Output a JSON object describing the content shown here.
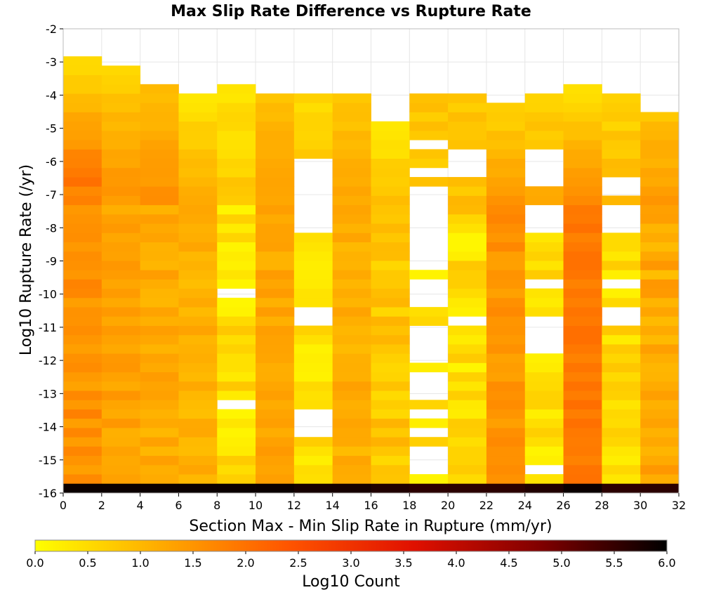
{
  "chart_data": {
    "type": "heatmap",
    "title": "Max Slip Rate Difference vs Rupture Rate",
    "xlabel": "Section Max - Min Slip Rate in Rupture (mm/yr)",
    "ylabel": "Log10 Rupture Rate (/yr)",
    "xlim": [
      0,
      32
    ],
    "ylim": [
      -16,
      -2
    ],
    "x_ticks": [
      "0",
      "2",
      "4",
      "6",
      "8",
      "10",
      "12",
      "14",
      "16",
      "18",
      "20",
      "22",
      "24",
      "26",
      "28",
      "30",
      "32"
    ],
    "y_ticks": [
      "-2",
      "-3",
      "-4",
      "-5",
      "-6",
      "-7",
      "-8",
      "-9",
      "-10",
      "-11",
      "-12",
      "-13",
      "-14",
      "-15",
      "-16"
    ],
    "x_bin_width": 2,
    "y_bin_width": 0.28,
    "y_bin_start": -15.85,
    "colorbar": {
      "label": "Log10 Count",
      "range": [
        0.0,
        6.0
      ],
      "ticks": [
        "0.0",
        "0.5",
        "1.0",
        "1.5",
        "2.0",
        "2.5",
        "3.0",
        "3.5",
        "4.0",
        "4.5",
        "5.0",
        "5.5",
        "6.0"
      ],
      "colors": [
        "#ffff00",
        "#ffaa00",
        "#ff5500",
        "#e01000",
        "#800000",
        "#000000"
      ]
    },
    "columns": [
      {
        "x": 1,
        "top": -2.7,
        "bottom_value": 5.9,
        "holes": [],
        "base": 1.55,
        "amp": 0.25,
        "top_trend": [
          0.5,
          2.1
        ]
      },
      {
        "x": 3,
        "top": -3.0,
        "bottom_value": 5.9,
        "holes": [],
        "base": 1.3,
        "amp": 0.2,
        "top_trend": [
          0.6,
          1.6
        ]
      },
      {
        "x": 5,
        "top": -3.6,
        "bottom_value": 5.9,
        "holes": [],
        "base": 1.2,
        "amp": 0.2,
        "top_trend": [
          0.9,
          1.6
        ]
      },
      {
        "x": 7,
        "top": -3.9,
        "bottom_value": 5.9,
        "holes": [],
        "base": 1.1,
        "amp": 0.2,
        "top_trend": [
          0.4,
          1.3
        ]
      },
      {
        "x": 9,
        "top": -3.6,
        "bottom_value": 5.9,
        "holes": [
          [
            -10.05,
            -9.75
          ],
          [
            -13.5,
            -13.2
          ]
        ],
        "base": 0.45,
        "amp": 0.35,
        "top_trend": [
          0.3,
          0.8
        ]
      },
      {
        "x": 11,
        "top": -3.9,
        "bottom_value": 5.9,
        "holes": [],
        "base": 1.25,
        "amp": 0.2,
        "top_trend": [
          0.9,
          1.4
        ]
      },
      {
        "x": 13,
        "top": -3.9,
        "bottom_value": 5.8,
        "holes": [
          [
            -8.15,
            -5.85
          ],
          [
            -10.95,
            -10.4
          ],
          [
            -14.4,
            -13.6
          ]
        ],
        "base": 0.45,
        "amp": 0.3,
        "top_trend": [
          0.5,
          0.8
        ]
      },
      {
        "x": 15,
        "top": -3.9,
        "bottom_value": 5.8,
        "holes": [],
        "base": 1.15,
        "amp": 0.2,
        "top_trend": [
          0.8,
          1.3
        ]
      },
      {
        "x": 17,
        "top": -4.7,
        "bottom_value": 5.7,
        "holes": [],
        "base": 0.8,
        "amp": 0.3,
        "top_trend": [
          0.4,
          1.0
        ]
      },
      {
        "x": 19,
        "top": -3.9,
        "bottom_value": 5.6,
        "holes": [
          [
            -5.55,
            -5.3
          ],
          [
            -6.5,
            -6.2
          ],
          [
            -9.15,
            -6.8
          ],
          [
            -9.85,
            -9.5
          ],
          [
            -10.4,
            -9.95
          ],
          [
            -12.15,
            -11.05
          ],
          [
            -13.3,
            -12.45
          ],
          [
            -13.85,
            -13.6
          ],
          [
            -14.3,
            -14.05
          ],
          [
            -15.5,
            -14.55
          ]
        ],
        "base": 0.45,
        "amp": 0.3,
        "top_trend": [
          0.8,
          0.8
        ]
      },
      {
        "x": 21,
        "top": -3.9,
        "bottom_value": 5.6,
        "holes": [
          [
            -6.4,
            -5.5
          ],
          [
            -11.05,
            -10.8
          ]
        ],
        "base": 0.45,
        "amp": 0.35,
        "top_trend": [
          0.8,
          0.9
        ]
      },
      {
        "x": 23,
        "top": -4.1,
        "bottom_value": 5.6,
        "holes": [],
        "base": 1.5,
        "amp": 0.2,
        "top_trend": [
          0.6,
          1.7
        ]
      },
      {
        "x": 25,
        "top": -3.9,
        "bottom_value": 5.7,
        "holes": [
          [
            -6.65,
            -5.75
          ],
          [
            -8.1,
            -7.3
          ],
          [
            -9.95,
            -9.5
          ],
          [
            -11.9,
            -10.7
          ],
          [
            -12.75,
            -12.5
          ],
          [
            -15.4,
            -15.15
          ]
        ],
        "base": 0.45,
        "amp": 0.3,
        "top_trend": [
          0.6,
          1.2
        ]
      },
      {
        "x": 27,
        "top": -3.6,
        "bottom_value": 5.9,
        "holes": [],
        "base": 1.9,
        "amp": 0.15,
        "top_trend": [
          0.4,
          1.8
        ]
      },
      {
        "x": 29,
        "top": -3.9,
        "bottom_value": 5.6,
        "holes": [
          [
            -7.05,
            -6.4
          ],
          [
            -8.2,
            -7.3
          ],
          [
            -9.9,
            -9.65
          ],
          [
            -10.95,
            -10.4
          ],
          [
            -15.5,
            -15.35
          ]
        ],
        "base": 0.45,
        "amp": 0.35,
        "top_trend": [
          0.6,
          1.1
        ]
      },
      {
        "x": 31,
        "top": -4.4,
        "bottom_value": 5.6,
        "holes": [],
        "base": 1.2,
        "amp": 0.3,
        "top_trend": [
          0.9,
          1.5
        ]
      }
    ]
  }
}
